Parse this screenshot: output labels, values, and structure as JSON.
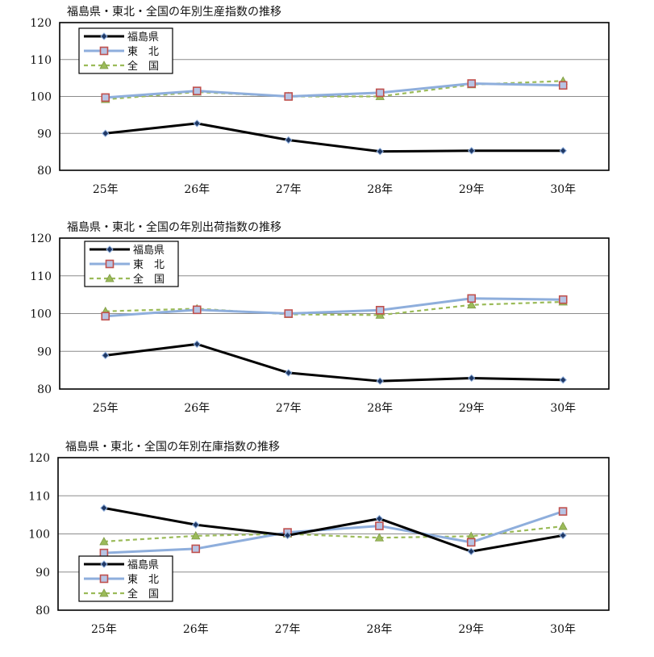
{
  "chart_data": [
    {
      "type": "line",
      "title": "福島県・東北・全国の年別生産指数の推移",
      "categories": [
        "25年",
        "26年",
        "27年",
        "28年",
        "29年",
        "30年"
      ],
      "ylim": [
        80,
        120
      ],
      "yticks": [
        80,
        90,
        100,
        110,
        120
      ],
      "grid": true,
      "legend_position": "top-left",
      "series": [
        {
          "name": "福島県",
          "values": [
            90.0,
            92.7,
            88.2,
            85.1,
            85.3,
            85.3
          ],
          "color": "#000000",
          "marker": "diamond",
          "style": "solid"
        },
        {
          "name": "東　北",
          "values": [
            99.7,
            101.5,
            100.0,
            101.0,
            103.5,
            103.0
          ],
          "color": "#8eaedc",
          "marker": "square",
          "style": "solid"
        },
        {
          "name": "全　国",
          "values": [
            99.2,
            101.2,
            100.0,
            100.0,
            103.2,
            104.2
          ],
          "color": "#9bbb59",
          "marker": "triangle",
          "style": "dashed"
        }
      ]
    },
    {
      "type": "line",
      "title": "福島県・東北・全国の年別出荷指数の推移",
      "categories": [
        "25年",
        "26年",
        "27年",
        "28年",
        "29年",
        "30年"
      ],
      "ylim": [
        80,
        120
      ],
      "yticks": [
        80,
        90,
        100,
        110,
        120
      ],
      "grid": true,
      "legend_position": "top-left",
      "series": [
        {
          "name": "福島県",
          "values": [
            88.9,
            91.9,
            84.3,
            82.1,
            82.9,
            82.4
          ],
          "color": "#000000",
          "marker": "diamond",
          "style": "solid"
        },
        {
          "name": "東　北",
          "values": [
            99.3,
            101.0,
            100.0,
            100.9,
            104.0,
            103.7
          ],
          "color": "#8eaedc",
          "marker": "square",
          "style": "solid"
        },
        {
          "name": "全　国",
          "values": [
            100.6,
            101.3,
            99.8,
            99.6,
            102.3,
            103.1
          ],
          "color": "#9bbb59",
          "marker": "triangle",
          "style": "dashed"
        }
      ]
    },
    {
      "type": "line",
      "title": "福島県・東北・全国の年別在庫指数の推移",
      "categories": [
        "25年",
        "26年",
        "27年",
        "28年",
        "29年",
        "30年"
      ],
      "ylim": [
        80,
        120
      ],
      "yticks": [
        80,
        90,
        100,
        110,
        120
      ],
      "grid": true,
      "legend_position": "bottom-left",
      "series": [
        {
          "name": "福島県",
          "values": [
            106.8,
            102.4,
            99.6,
            104.0,
            95.4,
            99.6
          ],
          "color": "#000000",
          "marker": "diamond",
          "style": "solid"
        },
        {
          "name": "東　北",
          "values": [
            95.0,
            96.1,
            100.4,
            102.1,
            97.8,
            105.9
          ],
          "color": "#8eaedc",
          "marker": "square",
          "style": "solid"
        },
        {
          "name": "全　国",
          "values": [
            98.0,
            99.5,
            100.0,
            99.0,
            99.4,
            102.0
          ],
          "color": "#9bbb59",
          "marker": "triangle",
          "style": "dashed"
        }
      ]
    }
  ]
}
